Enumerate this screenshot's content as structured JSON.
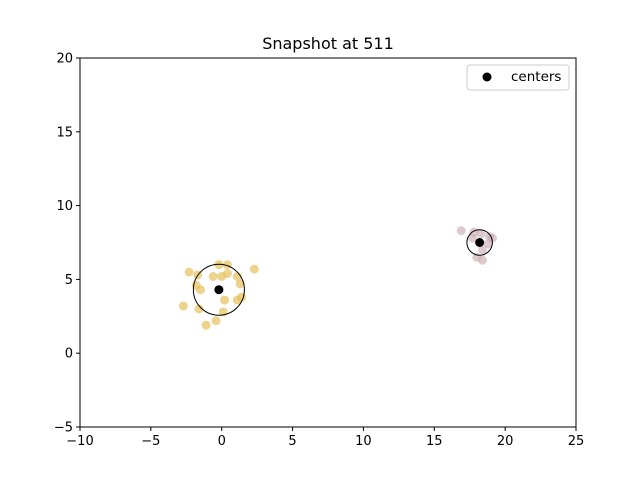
{
  "chart_data": {
    "type": "scatter",
    "title": "Snapshot at 511",
    "xlabel": "",
    "ylabel": "",
    "xlim": [
      -10,
      25
    ],
    "ylim": [
      -5,
      20
    ],
    "x_ticks": [
      -10,
      -5,
      0,
      5,
      10,
      15,
      20,
      25
    ],
    "y_ticks": [
      -5,
      0,
      5,
      10,
      15,
      20
    ],
    "x_tick_labels": [
      "−10",
      "−5",
      "0",
      "5",
      "10",
      "15",
      "20",
      "25"
    ],
    "y_tick_labels": [
      "−5",
      "0",
      "5",
      "10",
      "15",
      "20"
    ],
    "grid": false,
    "legend": {
      "placement": "top-right",
      "entries": [
        {
          "label": "centers",
          "color": "#000000",
          "marker": "circle"
        }
      ]
    },
    "clusters": [
      {
        "color": "#e6c15a",
        "opacity": 0.7,
        "center": [
          -0.2,
          4.3
        ],
        "radius": 1.8,
        "points": [
          [
            -2.3,
            5.5
          ],
          [
            -1.7,
            5.3
          ],
          [
            -1.5,
            4.3
          ],
          [
            -1.8,
            4.6
          ],
          [
            -0.6,
            5.2
          ],
          [
            0.0,
            5.2
          ],
          [
            -0.2,
            6.0
          ],
          [
            0.4,
            6.0
          ],
          [
            0.4,
            5.4
          ],
          [
            1.1,
            5.2
          ],
          [
            1.3,
            4.7
          ],
          [
            2.3,
            5.7
          ],
          [
            -2.7,
            3.2
          ],
          [
            -1.6,
            3.0
          ],
          [
            0.2,
            3.6
          ],
          [
            0.1,
            2.8
          ],
          [
            -0.4,
            2.2
          ],
          [
            -1.1,
            1.9
          ],
          [
            1.4,
            3.8
          ],
          [
            1.1,
            3.6
          ]
        ]
      },
      {
        "color": "#c7a7ae",
        "opacity": 0.6,
        "center": [
          18.2,
          7.5
        ],
        "radius": 0.9,
        "points": [
          [
            16.9,
            8.3
          ],
          [
            17.8,
            8.2
          ],
          [
            18.3,
            8.1
          ],
          [
            19.1,
            7.8
          ],
          [
            18.8,
            7.4
          ],
          [
            18.4,
            7.0
          ],
          [
            18.0,
            6.5
          ],
          [
            18.4,
            6.3
          ],
          [
            17.7,
            7.8
          ],
          [
            18.9,
            7.9
          ]
        ]
      }
    ]
  }
}
